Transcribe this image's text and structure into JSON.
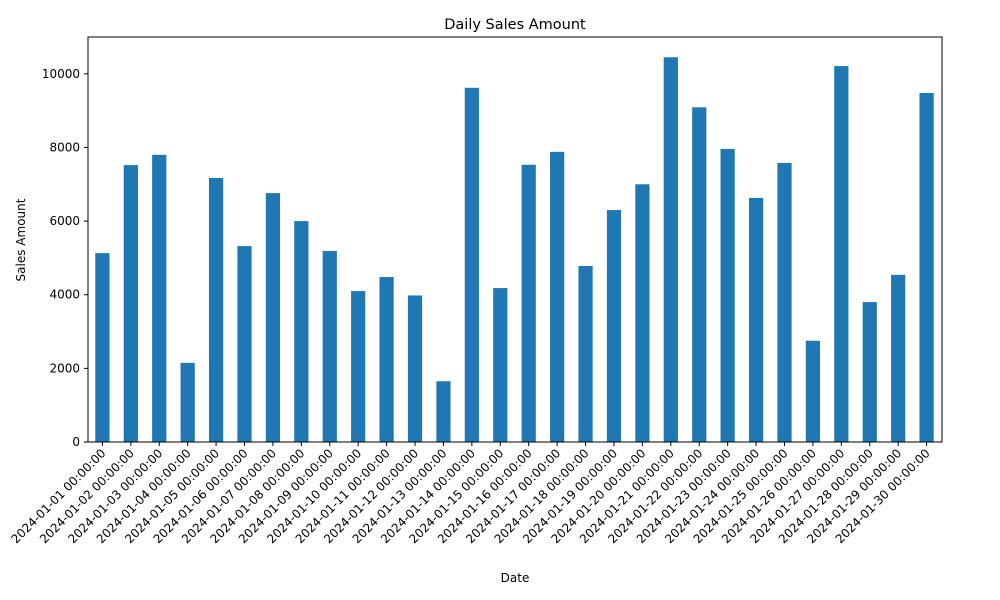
{
  "chart_data": {
    "type": "bar",
    "title": "Daily Sales Amount",
    "xlabel": "Date",
    "ylabel": "Sales Amount",
    "ylim": [
      0,
      11000
    ],
    "yticks": [
      0,
      2000,
      4000,
      6000,
      8000,
      10000
    ],
    "grid": false,
    "legend": "none",
    "bar_color": "#1f77b4",
    "categories": [
      "2024-01-01 00:00:00",
      "2024-01-02 00:00:00",
      "2024-01-03 00:00:00",
      "2024-01-04 00:00:00",
      "2024-01-05 00:00:00",
      "2024-01-06 00:00:00",
      "2024-01-07 00:00:00",
      "2024-01-08 00:00:00",
      "2024-01-09 00:00:00",
      "2024-01-10 00:00:00",
      "2024-01-11 00:00:00",
      "2024-01-12 00:00:00",
      "2024-01-13 00:00:00",
      "2024-01-14 00:00:00",
      "2024-01-15 00:00:00",
      "2024-01-16 00:00:00",
      "2024-01-17 00:00:00",
      "2024-01-18 00:00:00",
      "2024-01-19 00:00:00",
      "2024-01-20 00:00:00",
      "2024-01-21 00:00:00",
      "2024-01-22 00:00:00",
      "2024-01-23 00:00:00",
      "2024-01-24 00:00:00",
      "2024-01-25 00:00:00",
      "2024-01-26 00:00:00",
      "2024-01-27 00:00:00",
      "2024-01-28 00:00:00",
      "2024-01-29 00:00:00",
      "2024-01-30 00:00:00"
    ],
    "values": [
      5130,
      7520,
      7800,
      2150,
      7170,
      5320,
      6760,
      6000,
      5190,
      4100,
      4480,
      3980,
      1650,
      9620,
      4180,
      7530,
      7880,
      4780,
      6300,
      7000,
      10450,
      9090,
      7960,
      6630,
      7580,
      2750,
      10210,
      3800,
      4540,
      9480
    ]
  }
}
